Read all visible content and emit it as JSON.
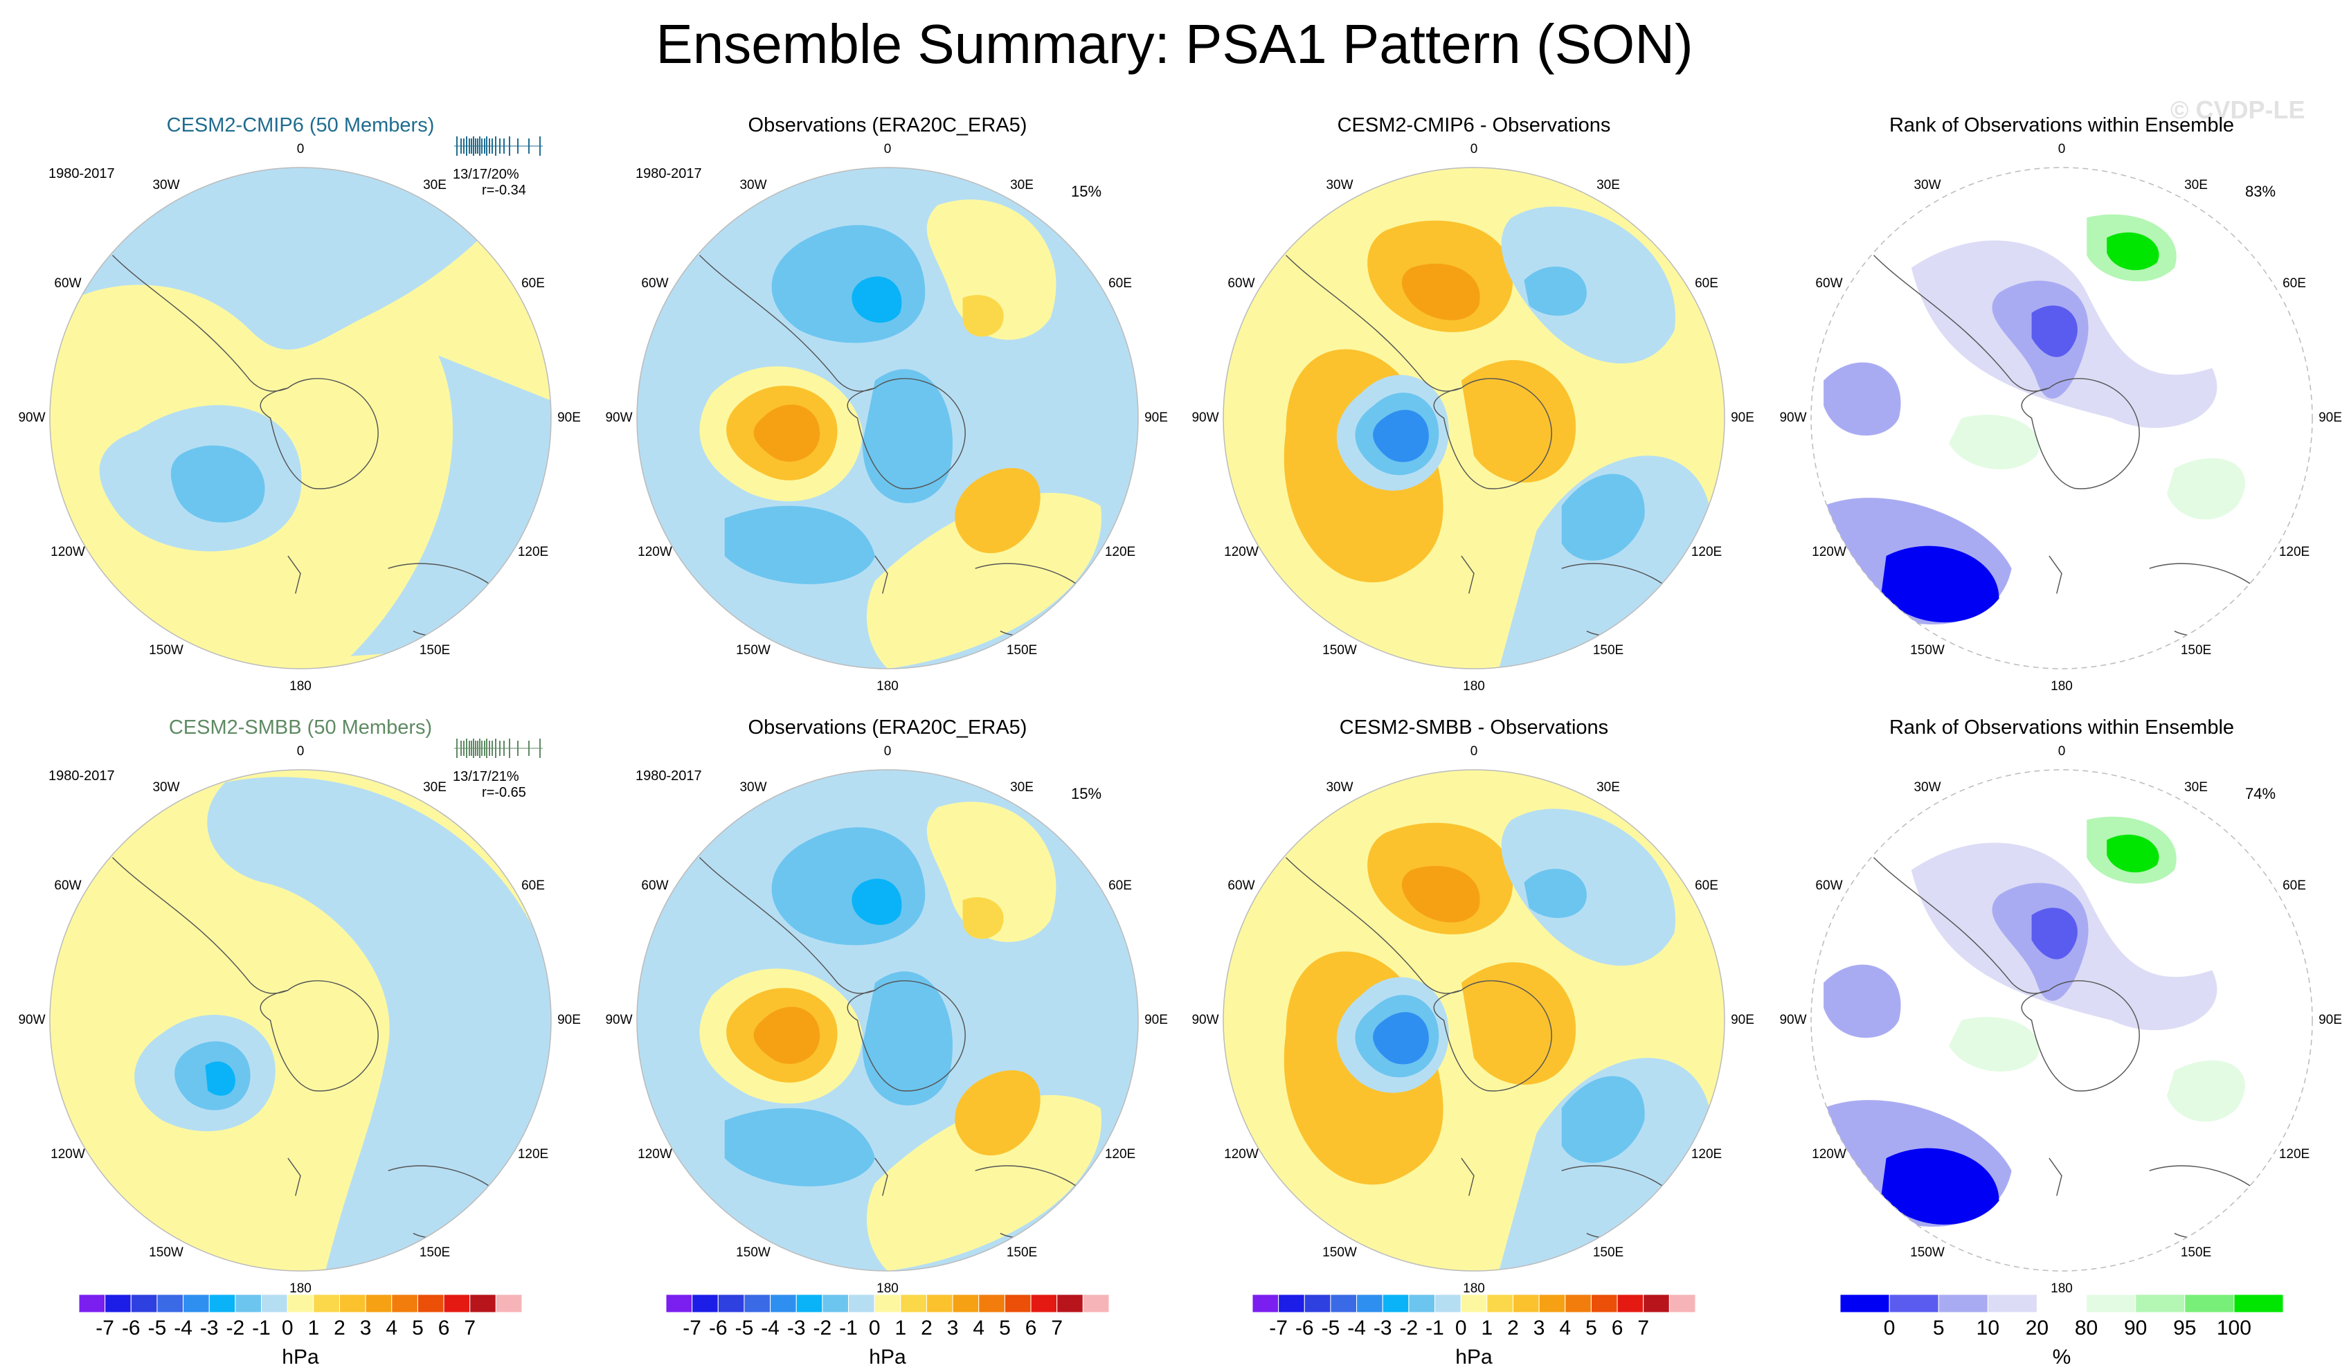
{
  "title": "Ensemble Summary: PSA1 Pattern (SON)",
  "watermark": "© CVDP-LE",
  "period": "1980-2017",
  "lon_labels": [
    "0",
    "30E",
    "60E",
    "90E",
    "120E",
    "150E",
    "180",
    "150W",
    "120W",
    "90W",
    "60W",
    "30W"
  ],
  "panels": [
    {
      "title": "CESM2-CMIP6 (50 Members)",
      "title_color": "#1f6c8f",
      "kind": "model",
      "stat": "13/17/20%",
      "corr": "r=-0.34",
      "tick_color": "#1f6c8f"
    },
    {
      "title": "Observations (ERA20C_ERA5)",
      "title_color": "#000000",
      "kind": "obs",
      "pct": "15%"
    },
    {
      "title": "CESM2-CMIP6 - Observations",
      "title_color": "#000000",
      "kind": "diff"
    },
    {
      "title": "Rank of Observations within Ensemble",
      "title_color": "#000000",
      "kind": "rank",
      "pct": "83%"
    },
    {
      "title": "CESM2-SMBB (50 Members)",
      "title_color": "#5e8a63",
      "kind": "model",
      "stat": "13/17/21%",
      "corr": "r=-0.65",
      "tick_color": "#5e8a63"
    },
    {
      "title": "Observations (ERA20C_ERA5)",
      "title_color": "#000000",
      "kind": "obs",
      "pct": "15%"
    },
    {
      "title": "CESM2-SMBB - Observations",
      "title_color": "#000000",
      "kind": "diff"
    },
    {
      "title": "Rank of Observations within Ensemble",
      "title_color": "#000000",
      "kind": "rank",
      "pct": "74%"
    }
  ],
  "colorbar_hpa": {
    "units": "hPa",
    "labels": [
      "-7",
      "-6",
      "-5",
      "-4",
      "-3",
      "-2",
      "-1",
      "0",
      "1",
      "2",
      "3",
      "4",
      "5",
      "6",
      "7"
    ],
    "colors": [
      "#7a1ff0",
      "#1d1de8",
      "#2e40e0",
      "#3b6ae6",
      "#2f8ff0",
      "#0ab3f7",
      "#6cc5ef",
      "#b6def3",
      "#fdf8a0",
      "#fbd84a",
      "#fbc22e",
      "#f6a114",
      "#f27d0c",
      "#ec4f08",
      "#e41a12",
      "#b8141c",
      "#f7b4b8"
    ]
  },
  "colorbar_rank": {
    "units": "%",
    "labels": [
      "0",
      "5",
      "10",
      "20",
      "80",
      "90",
      "95",
      "100"
    ],
    "colors": [
      "#0000f5",
      "#5a5cf0",
      "#a9abf2",
      "#dcdcf6",
      "#ffffff",
      "#e3fbe3",
      "#b4f6b4",
      "#78ef78",
      "#00e600"
    ]
  }
}
